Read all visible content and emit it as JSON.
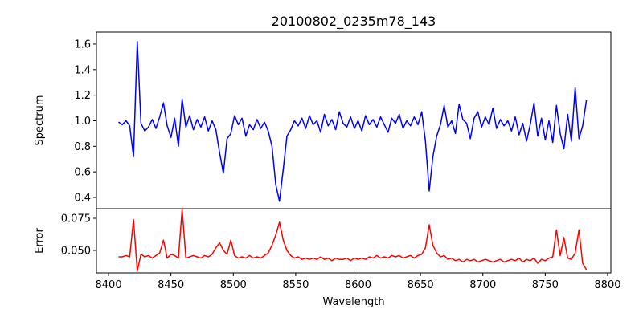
{
  "chart_data": [
    {
      "type": "line",
      "title": "20100802_0235m78_143",
      "xlabel": "",
      "ylabel": "Spectrum",
      "xlim": [
        8390.3,
        8802.6
      ],
      "ylim": [
        0.312,
        1.694
      ],
      "yticks": [
        0.4,
        0.6,
        0.8,
        1.0,
        1.2,
        1.4,
        1.6
      ],
      "ytick_labels": [
        "0.4",
        "0.6",
        "0.8",
        "1.0",
        "1.2",
        "1.4",
        "1.6"
      ],
      "grid": false,
      "series": [
        {
          "name": "Spectrum",
          "color": "#0000ff",
          "x_start": 8408,
          "x_step": 3,
          "values": [
            0.99,
            0.97,
            1.0,
            0.96,
            0.72,
            1.62,
            0.98,
            0.92,
            0.95,
            1.01,
            0.94,
            1.03,
            1.14,
            0.96,
            0.87,
            1.02,
            0.8,
            1.17,
            0.95,
            1.04,
            0.93,
            1.01,
            0.95,
            1.03,
            0.92,
            1.0,
            0.93,
            0.75,
            0.59,
            0.86,
            0.9,
            1.04,
            0.97,
            1.02,
            0.88,
            0.97,
            0.93,
            1.01,
            0.94,
            0.99,
            0.92,
            0.8,
            0.5,
            0.37,
            0.62,
            0.88,
            0.93,
            1.0,
            0.96,
            1.02,
            0.94,
            1.04,
            0.97,
            1.0,
            0.91,
            1.05,
            0.96,
            1.01,
            0.93,
            1.07,
            0.98,
            0.95,
            1.03,
            0.94,
            1.0,
            0.92,
            1.04,
            0.97,
            1.01,
            0.95,
            1.03,
            0.97,
            0.91,
            1.02,
            0.98,
            1.05,
            0.94,
            1.0,
            0.96,
            1.03,
            0.97,
            1.07,
            0.84,
            0.45,
            0.72,
            0.88,
            0.97,
            1.12,
            0.95,
            1.0,
            0.9,
            1.13,
            1.01,
            0.98,
            0.86,
            1.02,
            1.07,
            0.95,
            1.03,
            0.97,
            1.1,
            0.94,
            1.01,
            0.96,
            1.0,
            0.92,
            1.03,
            0.89,
            0.98,
            0.84,
            0.97,
            1.14,
            0.88,
            1.02,
            0.85,
            1.0,
            0.83,
            1.12,
            0.9,
            0.78,
            1.05,
            0.84,
            1.26,
            0.86,
            0.96,
            1.16
          ]
        }
      ]
    },
    {
      "type": "line",
      "title": "",
      "xlabel": "Wavelength",
      "ylabel": "Error",
      "xlim": [
        8390.3,
        8802.6
      ],
      "ylim": [
        0.0325,
        0.0825
      ],
      "xticks": [
        8400,
        8450,
        8500,
        8550,
        8600,
        8650,
        8700,
        8750,
        8800
      ],
      "xtick_labels": [
        "8400",
        "8450",
        "8500",
        "8550",
        "8600",
        "8650",
        "8700",
        "8750",
        "8800"
      ],
      "yticks": [
        0.05,
        0.075
      ],
      "ytick_labels": [
        "0.050",
        "0.075"
      ],
      "grid": false,
      "series": [
        {
          "name": "Error",
          "color": "#ff0000",
          "x_start": 8408,
          "x_step": 3,
          "values": [
            0.045,
            0.045,
            0.046,
            0.045,
            0.074,
            0.034,
            0.047,
            0.045,
            0.046,
            0.044,
            0.046,
            0.048,
            0.058,
            0.044,
            0.047,
            0.046,
            0.044,
            0.082,
            0.044,
            0.045,
            0.046,
            0.045,
            0.044,
            0.046,
            0.045,
            0.047,
            0.052,
            0.056,
            0.05,
            0.047,
            0.058,
            0.046,
            0.044,
            0.045,
            0.044,
            0.046,
            0.044,
            0.045,
            0.044,
            0.046,
            0.048,
            0.054,
            0.062,
            0.072,
            0.058,
            0.05,
            0.046,
            0.044,
            0.045,
            0.043,
            0.044,
            0.043,
            0.044,
            0.043,
            0.045,
            0.043,
            0.044,
            0.042,
            0.044,
            0.043,
            0.043,
            0.044,
            0.042,
            0.044,
            0.043,
            0.044,
            0.043,
            0.045,
            0.044,
            0.046,
            0.044,
            0.045,
            0.044,
            0.046,
            0.045,
            0.046,
            0.044,
            0.045,
            0.046,
            0.044,
            0.046,
            0.047,
            0.052,
            0.07,
            0.054,
            0.048,
            0.045,
            0.046,
            0.043,
            0.044,
            0.042,
            0.043,
            0.041,
            0.043,
            0.042,
            0.043,
            0.041,
            0.042,
            0.043,
            0.042,
            0.041,
            0.042,
            0.043,
            0.041,
            0.042,
            0.043,
            0.042,
            0.044,
            0.041,
            0.043,
            0.042,
            0.044,
            0.04,
            0.043,
            0.042,
            0.044,
            0.045,
            0.066,
            0.046,
            0.06,
            0.044,
            0.043,
            0.048,
            0.066,
            0.04,
            0.035
          ]
        }
      ]
    }
  ]
}
